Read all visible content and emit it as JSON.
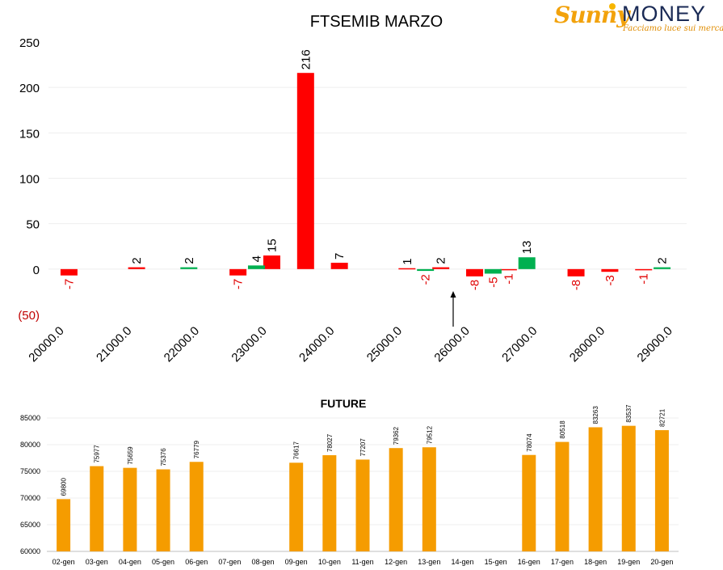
{
  "brand": {
    "name_part1": "Sunny",
    "name_part2": "MONEY",
    "tagline": "Facciamo luce sui mercati"
  },
  "chart_data": [
    {
      "type": "bar",
      "title": "FTSEMIB MARZO",
      "yticks": [
        "250",
        "200",
        "150",
        "100",
        "50",
        "0",
        "(50)"
      ],
      "ylim": [
        -50,
        250
      ],
      "x_tick_labels": [
        "20000.0",
        "21000.0",
        "22000.0",
        "23000.0",
        "24000.0",
        "25000.0",
        "26000.0",
        "27000.0",
        "28000.0",
        "29000.0"
      ],
      "strikes": [
        "20000.0",
        "20500.0",
        "21000.0",
        "21500.0",
        "22000.0",
        "22500.0",
        "23000.0",
        "23500.0",
        "24000.0",
        "24500.0",
        "25000.0",
        "25500.0",
        "26000.0",
        "26500.0",
        "27000.0",
        "27500.0",
        "28000.0",
        "28500.0",
        "29000.0"
      ],
      "series": [
        {
          "color": "#ff0000",
          "values": [
            -7,
            null,
            2,
            null,
            null,
            -7,
            15,
            216,
            7,
            null,
            1,
            2,
            -8,
            -1,
            null,
            -8,
            -3,
            -1,
            null
          ]
        },
        {
          "color": "#00b050",
          "values": [
            null,
            null,
            null,
            null,
            2,
            null,
            4,
            null,
            null,
            null,
            null,
            -2,
            null,
            -5,
            13,
            null,
            null,
            null,
            2
          ]
        }
      ],
      "annotation": "arrow-up-to-26000",
      "grid": true,
      "legend": "none"
    },
    {
      "type": "bar",
      "title": "FUTURE",
      "categories": [
        "02-gen",
        "03-gen",
        "04-gen",
        "05-gen",
        "06-gen",
        "07-gen",
        "08-gen",
        "09-gen",
        "10-gen",
        "11-gen",
        "12-gen",
        "13-gen",
        "14-gen",
        "15-gen",
        "16-gen",
        "17-gen",
        "18-gen",
        "19-gen",
        "20-gen"
      ],
      "values": [
        69800,
        75977,
        75659,
        75376,
        76779,
        null,
        null,
        76617,
        78027,
        77207,
        79362,
        79512,
        null,
        null,
        78074,
        80518,
        83263,
        83537,
        82721
      ],
      "yticks": [
        "85000",
        "80000",
        "75000",
        "70000",
        "65000",
        "60000"
      ],
      "ylim": [
        60000,
        85000
      ],
      "color": "#f59c00",
      "grid": true,
      "legend": "none"
    }
  ]
}
